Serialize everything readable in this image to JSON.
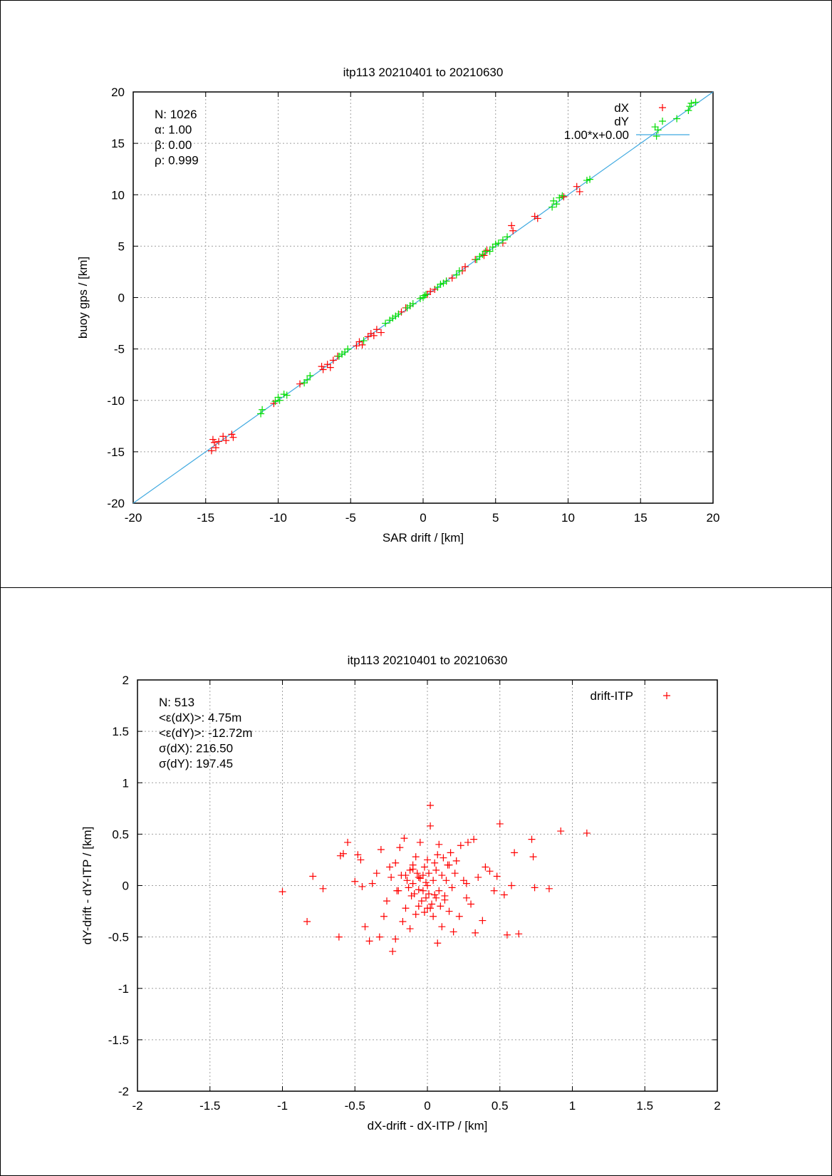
{
  "chart_data": [
    {
      "type": "scatter",
      "title": "itp113 20210401 to 20210630",
      "xlabel": "SAR drift / [km]",
      "ylabel": "buoy gps / [km]",
      "xlim": [
        -20,
        20
      ],
      "ylim": [
        -20,
        20
      ],
      "xticks": [
        "-20",
        "-15",
        "-10",
        "-5",
        "0",
        "5",
        "10",
        "15",
        "20"
      ],
      "yticks": [
        "-20",
        "-15",
        "-10",
        "-5",
        "0",
        "5",
        "10",
        "15",
        "20"
      ],
      "grid": true,
      "legend_position": "top-right",
      "stats": [
        "N: 1026",
        "α: 1.00",
        "β: 0.00",
        "ρ: 0.999"
      ],
      "colors": {
        "dX": "#ff0000",
        "dY": "#00dd00",
        "fit": "#3fa9e0"
      },
      "legend": [
        "dX",
        "dY",
        "1.00*x+0.00"
      ],
      "fit": {
        "label": "1.00*x+0.00",
        "slope": 1.0,
        "intercept": 0.0
      },
      "series": [
        {
          "name": "dX",
          "x": [
            -14.6,
            -14.4,
            -14.3,
            -14.5,
            -14.1,
            -13.8,
            -13.6,
            -13.2,
            -13.1,
            -10.3,
            -8.5,
            -7.0,
            -6.9,
            -6.6,
            -6.4,
            -6.2,
            -5.9,
            -4.6,
            -4.4,
            -4.2,
            -3.8,
            -3.6,
            -3.4,
            -3.2,
            -2.9,
            -1.5,
            -1.2,
            -0.9,
            0.3,
            0.5,
            0.8,
            1.6,
            2.0,
            2.7,
            2.9,
            3.6,
            4.2,
            4.4,
            5.5,
            6.2,
            6.1,
            7.7,
            7.9,
            9.7,
            10.6,
            10.8
          ],
          "y": [
            -14.9,
            -14.1,
            -14.6,
            -13.8,
            -14.0,
            -13.5,
            -13.9,
            -13.3,
            -13.6,
            -10.3,
            -8.4,
            -6.7,
            -7.0,
            -6.5,
            -6.8,
            -6.1,
            -5.7,
            -4.7,
            -4.3,
            -4.6,
            -3.8,
            -3.5,
            -3.7,
            -3.1,
            -3.4,
            -1.4,
            -1.0,
            -0.8,
            0.3,
            0.6,
            0.8,
            1.6,
            1.9,
            2.6,
            3.0,
            3.7,
            4.1,
            4.6,
            5.3,
            6.5,
            7.0,
            7.9,
            7.7,
            9.8,
            10.8,
            10.3
          ]
        },
        {
          "name": "dY",
          "x": [
            -11.2,
            -11.1,
            -10.2,
            -10.0,
            -9.9,
            -9.6,
            -9.4,
            -8.2,
            -8.0,
            -7.8,
            -5.8,
            -5.6,
            -5.4,
            -5.2,
            -4.1,
            -2.6,
            -2.3,
            -2.1,
            -1.9,
            -1.7,
            -1.1,
            -0.9,
            -0.7,
            -0.2,
            0.0,
            0.1,
            0.2,
            1.0,
            1.2,
            1.4,
            1.6,
            2.3,
            2.5,
            3.7,
            3.9,
            4.1,
            4.3,
            4.6,
            4.8,
            5.0,
            5.2,
            5.5,
            5.8,
            8.9,
            9.0,
            9.2,
            9.4,
            9.6,
            11.3,
            11.5,
            16.1,
            16.2,
            16.0,
            17.5,
            18.3,
            18.5,
            18.8,
            18.4
          ],
          "y": [
            -11.3,
            -10.9,
            -10.1,
            -9.7,
            -10.0,
            -9.4,
            -9.5,
            -8.3,
            -8.0,
            -7.6,
            -5.7,
            -5.5,
            -5.3,
            -5.0,
            -4.2,
            -2.5,
            -2.2,
            -2.0,
            -1.8,
            -1.6,
            -1.0,
            -0.8,
            -0.6,
            -0.1,
            0.0,
            0.2,
            0.3,
            1.0,
            1.3,
            1.4,
            1.6,
            2.2,
            2.6,
            3.7,
            4.0,
            4.2,
            4.5,
            4.5,
            4.9,
            5.2,
            5.3,
            5.6,
            5.9,
            8.8,
            9.4,
            9.1,
            9.7,
            9.9,
            11.4,
            11.5,
            15.7,
            16.3,
            16.6,
            17.4,
            18.2,
            18.9,
            19.0,
            18.6
          ]
        }
      ]
    },
    {
      "type": "scatter",
      "title": "itp113 20210401 to 20210630",
      "xlabel": "dX-drift - dX-ITP / [km]",
      "ylabel": "dY-drift - dY-ITP / [km]",
      "xlim": [
        -2,
        2
      ],
      "ylim": [
        -2,
        2
      ],
      "xticks": [
        "-2",
        "-1.5",
        "-1",
        "-0.5",
        "0",
        "0.5",
        "1",
        "1.5",
        "2"
      ],
      "yticks": [
        "-2",
        "-1.5",
        "-1",
        "-0.5",
        "0",
        "0.5",
        "1",
        "1.5",
        "2"
      ],
      "grid": true,
      "legend_position": "top-right",
      "stats": [
        "N: 513",
        "<ε(dX)>:  4.75m",
        "<ε(dY)>: -12.72m",
        "σ(dX):  216.50",
        "σ(dY):  197.45"
      ],
      "colors": {
        "drift-ITP": "#ff0000"
      },
      "legend": [
        "drift-ITP"
      ],
      "series": [
        {
          "name": "drift-ITP",
          "x": [
            -1.0,
            -0.83,
            -0.79,
            -0.72,
            -0.61,
            -0.6,
            -0.58,
            -0.55,
            -0.5,
            -0.48,
            -0.46,
            -0.45,
            -0.43,
            -0.4,
            -0.38,
            -0.35,
            -0.33,
            -0.32,
            -0.3,
            -0.28,
            -0.26,
            -0.25,
            -0.24,
            -0.22,
            -0.22,
            -0.2,
            -0.19,
            -0.18,
            -0.17,
            -0.16,
            -0.15,
            -0.14,
            -0.13,
            -0.12,
            -0.12,
            -0.11,
            -0.1,
            -0.1,
            -0.09,
            -0.08,
            -0.08,
            -0.07,
            -0.06,
            -0.06,
            -0.05,
            -0.05,
            -0.04,
            -0.03,
            -0.03,
            -0.02,
            -0.02,
            -0.01,
            -0.01,
            0.0,
            0.0,
            0.01,
            0.01,
            0.02,
            0.02,
            0.03,
            0.04,
            0.04,
            0.05,
            0.06,
            0.06,
            0.07,
            0.08,
            0.08,
            0.09,
            0.1,
            0.1,
            0.11,
            0.12,
            0.13,
            0.14,
            0.15,
            0.16,
            0.17,
            0.18,
            0.19,
            0.2,
            0.22,
            0.23,
            0.25,
            0.27,
            0.28,
            0.3,
            0.32,
            0.33,
            0.35,
            0.38,
            0.4,
            0.43,
            0.46,
            0.48,
            0.5,
            0.53,
            0.55,
            0.58,
            0.6,
            0.63,
            0.72,
            0.73,
            0.74,
            0.84,
            0.92,
            1.1,
            0.07,
            0.02,
            -0.15,
            0.27,
            0.12,
            -0.06,
            -0.21,
            0.05,
            0.15,
            -0.1,
            0.0
          ],
          "y": [
            -0.06,
            -0.35,
            0.09,
            -0.03,
            -0.5,
            0.29,
            0.31,
            0.42,
            0.04,
            0.3,
            0.25,
            -0.01,
            -0.4,
            -0.54,
            0.02,
            0.12,
            -0.5,
            0.35,
            -0.3,
            -0.15,
            0.18,
            0.08,
            -0.64,
            0.22,
            -0.52,
            -0.05,
            0.37,
            0.1,
            -0.35,
            0.46,
            -0.22,
            0.05,
            -0.02,
            0.15,
            -0.42,
            -0.1,
            0.2,
            0.02,
            -0.08,
            0.28,
            -0.28,
            0.12,
            -0.04,
            -0.2,
            0.07,
            0.42,
            -0.15,
            0.1,
            -0.05,
            0.18,
            -0.26,
            0.03,
            -0.12,
            0.25,
            0.0,
            -0.08,
            0.12,
            0.58,
            0.78,
            -0.18,
            0.05,
            -0.3,
            0.22,
            -0.12,
            0.15,
            0.3,
            -0.05,
            0.4,
            -0.2,
            0.1,
            -0.4,
            0.27,
            -0.1,
            0.05,
            0.2,
            -0.25,
            0.32,
            -0.02,
            -0.45,
            0.12,
            0.24,
            -0.3,
            0.39,
            0.05,
            -0.12,
            0.42,
            -0.18,
            0.45,
            -0.46,
            0.08,
            -0.34,
            0.18,
            0.14,
            -0.05,
            0.09,
            0.6,
            -0.09,
            -0.48,
            0.0,
            0.32,
            -0.47,
            0.45,
            0.28,
            -0.02,
            -0.03,
            0.53,
            0.51,
            -0.56,
            -0.22,
            0.1,
            0.02,
            -0.14,
            0.08,
            -0.05,
            -0.09,
            0.2,
            0.16,
            -0.22
          ],
          "marker": "+"
        }
      ]
    }
  ]
}
